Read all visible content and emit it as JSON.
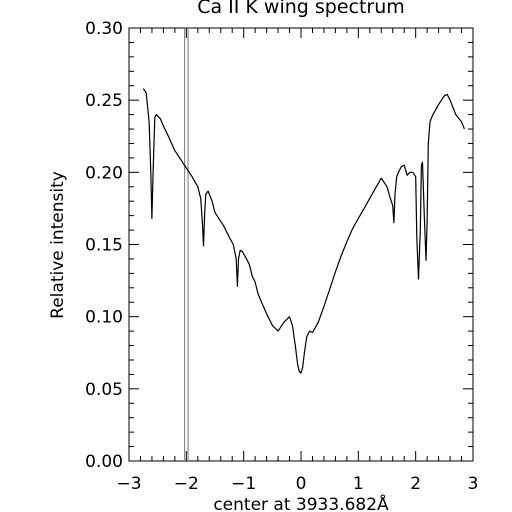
{
  "chart_data": {
    "type": "line",
    "title": "Ca II K wing spectrum",
    "xlabel": "center at 3933.682Å",
    "ylabel": "Relative intensity",
    "xlim": [
      -3,
      3
    ],
    "ylim": [
      0,
      0.3
    ],
    "x_ticks": [
      "−3",
      "−2",
      "−1",
      "0",
      "1",
      "2",
      "3"
    ],
    "y_ticks": [
      "0.00",
      "0.05",
      "0.10",
      "0.15",
      "0.20",
      "0.25",
      "0.30"
    ],
    "grid": false,
    "markers": [
      -2.03,
      -1.97
    ],
    "series": [
      {
        "x": [
          -2.75,
          -2.7,
          -2.65,
          -2.62,
          -2.6,
          -2.58,
          -2.55,
          -2.52,
          -2.45,
          -2.4,
          -2.3,
          -2.2,
          -2.1,
          -2.0,
          -1.9,
          -1.8,
          -1.75,
          -1.72,
          -1.7,
          -1.68,
          -1.66,
          -1.62,
          -1.55,
          -1.5,
          -1.45,
          -1.35,
          -1.25,
          -1.18,
          -1.13,
          -1.11,
          -1.09,
          -1.06,
          -1.02,
          -0.95,
          -0.9,
          -0.85,
          -0.8,
          -0.75,
          -0.7,
          -0.6,
          -0.5,
          -0.4,
          -0.3,
          -0.2,
          -0.15,
          -0.1,
          -0.06,
          -0.03,
          0.0,
          0.03,
          0.06,
          0.1,
          0.15,
          0.2,
          0.3,
          0.4,
          0.5,
          0.6,
          0.7,
          0.8,
          0.9,
          1.0,
          1.1,
          1.2,
          1.3,
          1.4,
          1.5,
          1.55,
          1.6,
          1.62,
          1.64,
          1.67,
          1.7,
          1.75,
          1.8,
          1.85,
          1.9,
          1.95,
          2.0,
          2.02,
          2.05,
          2.08,
          2.1,
          2.12,
          2.15,
          2.18,
          2.2,
          2.22,
          2.25,
          2.28,
          2.3,
          2.33,
          2.4,
          2.5,
          2.55,
          2.6,
          2.7,
          2.8,
          2.85
        ],
        "y": [
          0.258,
          0.255,
          0.235,
          0.2,
          0.168,
          0.2,
          0.238,
          0.24,
          0.237,
          0.232,
          0.224,
          0.215,
          0.209,
          0.203,
          0.197,
          0.19,
          0.182,
          0.165,
          0.149,
          0.172,
          0.185,
          0.187,
          0.18,
          0.172,
          0.169,
          0.163,
          0.155,
          0.15,
          0.14,
          0.121,
          0.14,
          0.146,
          0.145,
          0.14,
          0.136,
          0.128,
          0.124,
          0.116,
          0.111,
          0.102,
          0.094,
          0.09,
          0.096,
          0.1,
          0.094,
          0.08,
          0.067,
          0.062,
          0.061,
          0.065,
          0.075,
          0.086,
          0.09,
          0.089,
          0.096,
          0.107,
          0.119,
          0.131,
          0.142,
          0.152,
          0.161,
          0.168,
          0.175,
          0.182,
          0.189,
          0.196,
          0.19,
          0.183,
          0.177,
          0.165,
          0.185,
          0.197,
          0.2,
          0.204,
          0.205,
          0.198,
          0.2,
          0.2,
          0.197,
          0.155,
          0.126,
          0.16,
          0.205,
          0.207,
          0.17,
          0.139,
          0.165,
          0.22,
          0.235,
          0.238,
          0.24,
          0.242,
          0.247,
          0.253,
          0.254,
          0.25,
          0.24,
          0.235,
          0.23
        ]
      }
    ]
  }
}
